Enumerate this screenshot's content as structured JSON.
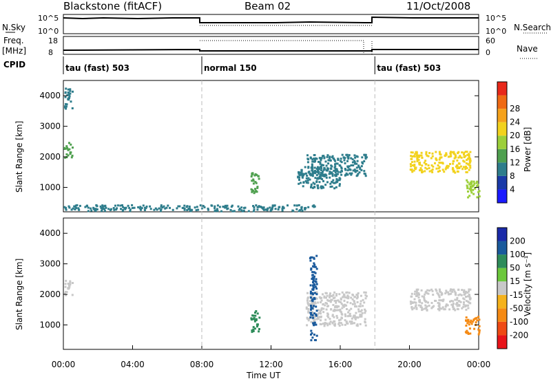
{
  "header": {
    "title_left": "Blackstone (fitACF)",
    "title_center": "Beam 02",
    "title_right": "11/Oct/2008"
  },
  "left_labels": {
    "nsky": "N.Sky",
    "freq": "Freq.",
    "freq_unit": "[MHz]",
    "cpid": "CPID"
  },
  "right_labels": {
    "nsearch": "N.Search",
    "nave": "Nave"
  },
  "nsky_axis": {
    "ticks": [
      "10^5",
      "10^0"
    ],
    "ticks_right": [
      "10^5",
      "10^0"
    ]
  },
  "freq_axis": {
    "ticks": [
      "18",
      "8"
    ],
    "ticks_right": [
      "60",
      "0"
    ]
  },
  "cpid_segments": [
    {
      "start": 0,
      "end": 8,
      "label": "tau (fast) 503"
    },
    {
      "start": 8,
      "end": 18,
      "label": "normal 150"
    },
    {
      "start": 18,
      "end": 24,
      "label": "tau (fast) 503"
    }
  ],
  "x_axis": {
    "label": "Time UT",
    "ticks": [
      "00:00",
      "04:00",
      "08:00",
      "12:00",
      "16:00",
      "20:00",
      "00:00"
    ]
  },
  "power_panel": {
    "ylabel": "Slant Range [km]",
    "yticks": [
      "1000",
      "2000",
      "3000",
      "4000"
    ],
    "colorbar_label": "Power [dB]",
    "colorbar_ticks": [
      "4",
      "8",
      "12",
      "16",
      "20",
      "24",
      "28"
    ],
    "colors": [
      "#1a1aff",
      "#1a3aa8",
      "#2e7d8c",
      "#4fa04f",
      "#9ccf3a",
      "#f2d21e",
      "#f5a21c",
      "#ef6a14",
      "#e8281a"
    ]
  },
  "velocity_panel": {
    "ylabel": "Slant Range [km]",
    "yticks": [
      "1000",
      "2000",
      "3000",
      "4000"
    ],
    "colorbar_label": "Velocity [m s⁻¹]",
    "colorbar_ticks": [
      "200",
      "100",
      "50",
      "15",
      "-15",
      "-50",
      "-100",
      "-200"
    ],
    "colors": [
      "#1a2aa8",
      "#1a5a9c",
      "#2e8c5a",
      "#6cc83c",
      "#c8c8c8",
      "#f5b21c",
      "#f58a14",
      "#ef4a14",
      "#e8141a"
    ]
  },
  "chart_data": {
    "type": "heatmap",
    "title": "Blackstone (fitACF) Beam 02 11/Oct/2008",
    "xlabel": "Time UT",
    "ylabel": "Slant Range [km]",
    "xlim_hours": [
      0,
      24
    ],
    "ylim_km": [
      200,
      4500
    ],
    "power_features": [
      {
        "t0": 0.0,
        "t1": 0.5,
        "r0": 3600,
        "r1": 4300,
        "level": 8
      },
      {
        "t0": 0.0,
        "t1": 0.5,
        "r0": 2000,
        "r1": 2500,
        "level": 12
      },
      {
        "t0": 10.8,
        "t1": 11.3,
        "r0": 800,
        "r1": 1500,
        "level": 12
      },
      {
        "t0": 13.5,
        "t1": 16.0,
        "r0": 1000,
        "r1": 1700,
        "level": 6
      },
      {
        "t0": 14.0,
        "t1": 17.5,
        "r0": 1400,
        "r1": 2100,
        "level": 8
      },
      {
        "t0": 20.0,
        "t1": 23.5,
        "r0": 1500,
        "r1": 2200,
        "level": 18
      },
      {
        "t0": 23.2,
        "t1": 24.0,
        "r0": 700,
        "r1": 1300,
        "level": 14
      },
      {
        "t0": 0.0,
        "t1": 14.5,
        "r0": 250,
        "r1": 450,
        "level": 8
      }
    ],
    "velocity_features": [
      {
        "t0": 0.0,
        "t1": 0.5,
        "r0": 2000,
        "r1": 2500,
        "vel": 0
      },
      {
        "t0": 10.8,
        "t1": 11.3,
        "r0": 800,
        "r1": 1500,
        "vel": 60
      },
      {
        "t0": 14.0,
        "t1": 17.5,
        "r0": 1000,
        "r1": 2100,
        "vel": 0
      },
      {
        "t0": 20.0,
        "t1": 23.5,
        "r0": 1500,
        "r1": 2200,
        "vel": 0
      },
      {
        "t0": 23.2,
        "t1": 24.0,
        "r0": 700,
        "r1": 1300,
        "vel": -70
      },
      {
        "t0": 14.2,
        "t1": 14.6,
        "r0": 500,
        "r1": 3300,
        "vel": 150
      }
    ]
  }
}
